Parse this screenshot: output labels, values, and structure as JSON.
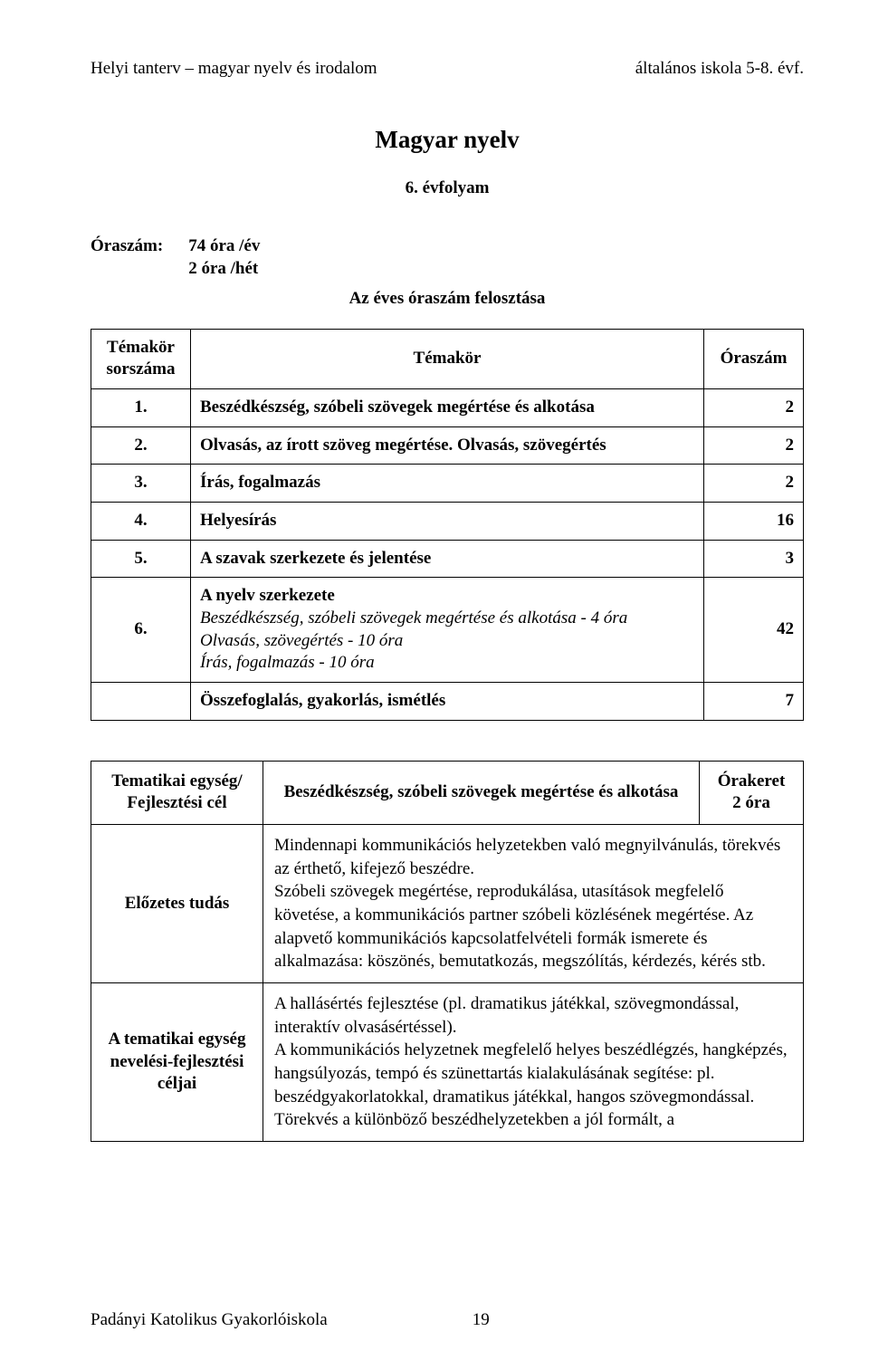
{
  "header": {
    "left": "Helyi tanterv – magyar nyelv és irodalom",
    "right": "általános iskola 5-8. évf."
  },
  "title": "Magyar nyelv",
  "subtitle": "6. évfolyam",
  "hours": {
    "label": "Óraszám:",
    "per_year": "74 óra /év",
    "per_week": "2 óra /hét",
    "distribution_title": "Az éves óraszám felosztása"
  },
  "topics_table": {
    "columns": [
      "Témakör sorszáma",
      "Témakör",
      "Óraszám"
    ],
    "rows": [
      {
        "num": "1.",
        "name": "Beszédkészség, szóbeli szövegek megértése és alkotása",
        "hours": "2"
      },
      {
        "num": "2.",
        "name": "Olvasás, az írott szöveg megértése. Olvasás, szövegértés",
        "hours": "2"
      },
      {
        "num": "3.",
        "name": "Írás, fogalmazás",
        "hours": "2"
      },
      {
        "num": "4.",
        "name": "Helyesírás",
        "hours": "16"
      },
      {
        "num": "5.",
        "name": "A szavak szerkezete és jelentése",
        "hours": "3"
      },
      {
        "num": "6.",
        "name_line1": "A nyelv szerkezete",
        "name_italic1": "Beszédkészség, szóbeli szövegek megértése és alkotása - 4 óra",
        "name_italic2": "Olvasás, szövegértés - 10 óra",
        "name_italic3": "Írás, fogalmazás - 10 óra",
        "hours": "42"
      },
      {
        "num": "",
        "name": "Összefoglalás, gyakorlás, ismétlés",
        "hours": "7"
      }
    ]
  },
  "unit_table": {
    "row1": {
      "label": "Tematikai egység/ Fejlesztési cél",
      "title": "Beszédkészség, szóbeli szövegek megértése és alkotása",
      "right_line1": "Órakeret",
      "right_line2": "2 óra"
    },
    "row2": {
      "label": "Előzetes tudás",
      "body": "Mindennapi kommunikációs helyzetekben való megnyilvánulás, törekvés az érthető, kifejező beszédre.\nSzóbeli szövegek megértése, reprodukálása, utasítások megfelelő követése, a kommunikációs partner szóbeli közlésének megértése. Az alapvető kommunikációs kapcsolatfelvételi formák ismerete és alkalmazása: köszönés, bemutatkozás, megszólítás, kérdezés, kérés stb."
    },
    "row3": {
      "label": "A tematikai egység nevelési-fejlesztési céljai",
      "body": "A hallásértés fejlesztése (pl. dramatikus játékkal, szövegmondással, interaktív olvasásértéssel).\nA kommunikációs helyzetnek megfelelő helyes beszédlégzés, hangképzés, hangsúlyozás, tempó és szünettartás kialakulásának segítése: pl. beszédgyakorlatokkal, dramatikus játékkal, hangos szövegmondással.\nTörekvés a különböző beszédhelyzetekben a jól formált, a"
    }
  },
  "footer": {
    "school": "Padányi Katolikus Gyakorlóiskola",
    "page": "19"
  }
}
